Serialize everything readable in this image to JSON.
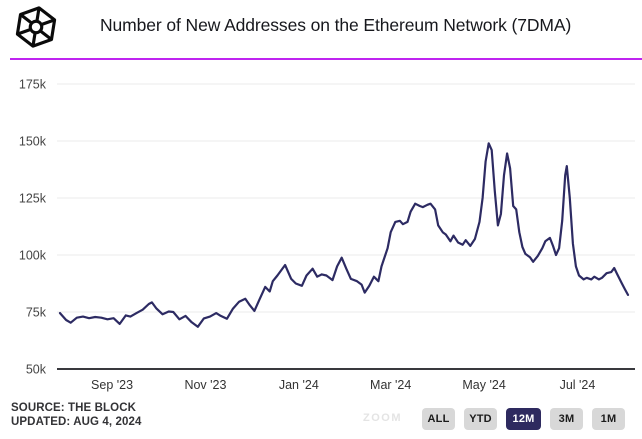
{
  "header": {
    "title": "Number of New Addresses on the Ethereum Network (7DMA)",
    "logo": "the-block-logo",
    "divider_color": "#bf24f0"
  },
  "footer": {
    "source_line1": "SOURCE: THE BLOCK",
    "source_line2": "UPDATED: AUG 4, 2024",
    "zoom_label": "ZOOM",
    "range_buttons": [
      {
        "label": "ALL",
        "active": false
      },
      {
        "label": "YTD",
        "active": false
      },
      {
        "label": "12M",
        "active": true
      },
      {
        "label": "3M",
        "active": false
      },
      {
        "label": "1M",
        "active": false
      }
    ],
    "active_button_color": "#2e2a5f",
    "inactive_button_color": "#d8d8d8"
  },
  "chart_data": {
    "type": "line",
    "title": "Number of New Addresses on the Ethereum Network (7DMA)",
    "xlabel": "",
    "ylabel": "",
    "values_unit": "thousands of new addresses (k)",
    "line_color": "#2d2b63",
    "grid": true,
    "legend": "none",
    "ylim": [
      50,
      181
    ],
    "yticks": [
      {
        "value": 50,
        "label": "50k"
      },
      {
        "value": 75,
        "label": "75k"
      },
      {
        "value": 100,
        "label": "100k"
      },
      {
        "value": 125,
        "label": "125k"
      },
      {
        "value": 150,
        "label": "150k"
      },
      {
        "value": 175,
        "label": "175k"
      }
    ],
    "xticks": [
      {
        "date": "2023-09-01",
        "label": "Sep '23"
      },
      {
        "date": "2023-11-01",
        "label": "Nov '23"
      },
      {
        "date": "2024-01-01",
        "label": "Jan '24"
      },
      {
        "date": "2024-03-01",
        "label": "Mar '24"
      },
      {
        "date": "2024-05-01",
        "label": "May '24"
      },
      {
        "date": "2024-07-01",
        "label": "Jul '24"
      }
    ],
    "series": [
      {
        "name": "New Addresses (7DMA)",
        "points": [
          [
            "2023-07-29",
            74.5
          ],
          [
            "2023-08-02",
            71.5
          ],
          [
            "2023-08-05",
            70.3
          ],
          [
            "2023-08-09",
            72.5
          ],
          [
            "2023-08-13",
            73.0
          ],
          [
            "2023-08-17",
            72.3
          ],
          [
            "2023-08-21",
            72.8
          ],
          [
            "2023-08-25",
            72.5
          ],
          [
            "2023-08-29",
            71.8
          ],
          [
            "2023-09-02",
            72.3
          ],
          [
            "2023-09-06",
            69.8
          ],
          [
            "2023-09-10",
            73.5
          ],
          [
            "2023-09-13",
            73.0
          ],
          [
            "2023-09-17",
            74.5
          ],
          [
            "2023-09-21",
            76.0
          ],
          [
            "2023-09-25",
            78.5
          ],
          [
            "2023-09-27",
            79.2
          ],
          [
            "2023-09-30",
            76.5
          ],
          [
            "2023-10-04",
            74.0
          ],
          [
            "2023-10-08",
            75.2
          ],
          [
            "2023-10-11",
            75.0
          ],
          [
            "2023-10-15",
            71.8
          ],
          [
            "2023-10-19",
            73.3
          ],
          [
            "2023-10-23",
            70.5
          ],
          [
            "2023-10-27",
            68.5
          ],
          [
            "2023-10-31",
            72.2
          ],
          [
            "2023-11-04",
            73.0
          ],
          [
            "2023-11-08",
            74.5
          ],
          [
            "2023-11-11",
            73.3
          ],
          [
            "2023-11-15",
            72.0
          ],
          [
            "2023-11-19",
            76.5
          ],
          [
            "2023-11-23",
            79.5
          ],
          [
            "2023-11-27",
            80.8
          ],
          [
            "2023-11-30",
            78.0
          ],
          [
            "2023-12-03",
            75.5
          ],
          [
            "2023-12-06",
            80.0
          ],
          [
            "2023-12-10",
            86.0
          ],
          [
            "2023-12-13",
            84.0
          ],
          [
            "2023-12-15",
            88.5
          ],
          [
            "2023-12-18",
            91.0
          ],
          [
            "2023-12-23",
            95.6
          ],
          [
            "2023-12-27",
            89.5
          ],
          [
            "2023-12-30",
            87.5
          ],
          [
            "2024-01-03",
            86.5
          ],
          [
            "2024-01-06",
            91.0
          ],
          [
            "2024-01-10",
            94.0
          ],
          [
            "2024-01-13",
            90.5
          ],
          [
            "2024-01-16",
            91.5
          ],
          [
            "2024-01-19",
            91.0
          ],
          [
            "2024-01-23",
            89.0
          ],
          [
            "2024-01-26",
            95.0
          ],
          [
            "2024-01-29",
            98.8
          ],
          [
            "2024-02-01",
            94.0
          ],
          [
            "2024-02-04",
            89.5
          ],
          [
            "2024-02-08",
            88.5
          ],
          [
            "2024-02-11",
            87.0
          ],
          [
            "2024-02-13",
            83.5
          ],
          [
            "2024-02-16",
            86.5
          ],
          [
            "2024-02-19",
            90.5
          ],
          [
            "2024-02-22",
            88.5
          ],
          [
            "2024-02-24",
            95.0
          ],
          [
            "2024-02-28",
            103.0
          ],
          [
            "2024-03-01",
            110.0
          ],
          [
            "2024-03-04",
            114.5
          ],
          [
            "2024-03-07",
            115.0
          ],
          [
            "2024-03-09",
            113.5
          ],
          [
            "2024-03-12",
            114.5
          ],
          [
            "2024-03-14",
            119.0
          ],
          [
            "2024-03-17",
            122.5
          ],
          [
            "2024-03-20",
            121.5
          ],
          [
            "2024-03-22",
            121.0
          ],
          [
            "2024-03-25",
            122.0
          ],
          [
            "2024-03-27",
            122.5
          ],
          [
            "2024-03-30",
            120.0
          ],
          [
            "2024-04-01",
            113.0
          ],
          [
            "2024-04-04",
            110.0
          ],
          [
            "2024-04-06",
            109.0
          ],
          [
            "2024-04-09",
            106.0
          ],
          [
            "2024-04-11",
            108.5
          ],
          [
            "2024-04-14",
            105.5
          ],
          [
            "2024-04-17",
            104.5
          ],
          [
            "2024-04-19",
            106.5
          ],
          [
            "2024-04-22",
            104.0
          ],
          [
            "2024-04-25",
            107.0
          ],
          [
            "2024-04-28",
            114.5
          ],
          [
            "2024-04-30",
            125.0
          ],
          [
            "2024-05-02",
            141.0
          ],
          [
            "2024-05-04",
            149.0
          ],
          [
            "2024-05-06",
            146.0
          ],
          [
            "2024-05-08",
            128.0
          ],
          [
            "2024-05-10",
            113.0
          ],
          [
            "2024-05-12",
            118.0
          ],
          [
            "2024-05-14",
            135.0
          ],
          [
            "2024-05-16",
            144.5
          ],
          [
            "2024-05-18",
            138.0
          ],
          [
            "2024-05-20",
            121.5
          ],
          [
            "2024-05-22",
            120.0
          ],
          [
            "2024-05-24",
            110.0
          ],
          [
            "2024-05-26",
            103.5
          ],
          [
            "2024-05-28",
            100.5
          ],
          [
            "2024-05-31",
            99.0
          ],
          [
            "2024-06-02",
            97.0
          ],
          [
            "2024-06-05",
            99.5
          ],
          [
            "2024-06-08",
            103.0
          ],
          [
            "2024-06-10",
            106.0
          ],
          [
            "2024-06-13",
            107.5
          ],
          [
            "2024-06-15",
            104.0
          ],
          [
            "2024-06-17",
            100.0
          ],
          [
            "2024-06-19",
            103.0
          ],
          [
            "2024-06-21",
            115.0
          ],
          [
            "2024-06-23",
            135.0
          ],
          [
            "2024-06-24",
            139.0
          ],
          [
            "2024-06-26",
            125.0
          ],
          [
            "2024-06-28",
            105.0
          ],
          [
            "2024-06-30",
            95.0
          ],
          [
            "2024-07-02",
            91.0
          ],
          [
            "2024-07-05",
            89.3
          ],
          [
            "2024-07-07",
            90.0
          ],
          [
            "2024-07-10",
            89.3
          ],
          [
            "2024-07-12",
            90.5
          ],
          [
            "2024-07-15",
            89.3
          ],
          [
            "2024-07-17",
            90.0
          ],
          [
            "2024-07-20",
            92.0
          ],
          [
            "2024-07-23",
            92.5
          ],
          [
            "2024-07-25",
            94.3
          ],
          [
            "2024-07-27",
            91.5
          ],
          [
            "2024-07-30",
            87.5
          ],
          [
            "2024-08-01",
            85.0
          ],
          [
            "2024-08-03",
            82.5
          ]
        ]
      }
    ]
  }
}
